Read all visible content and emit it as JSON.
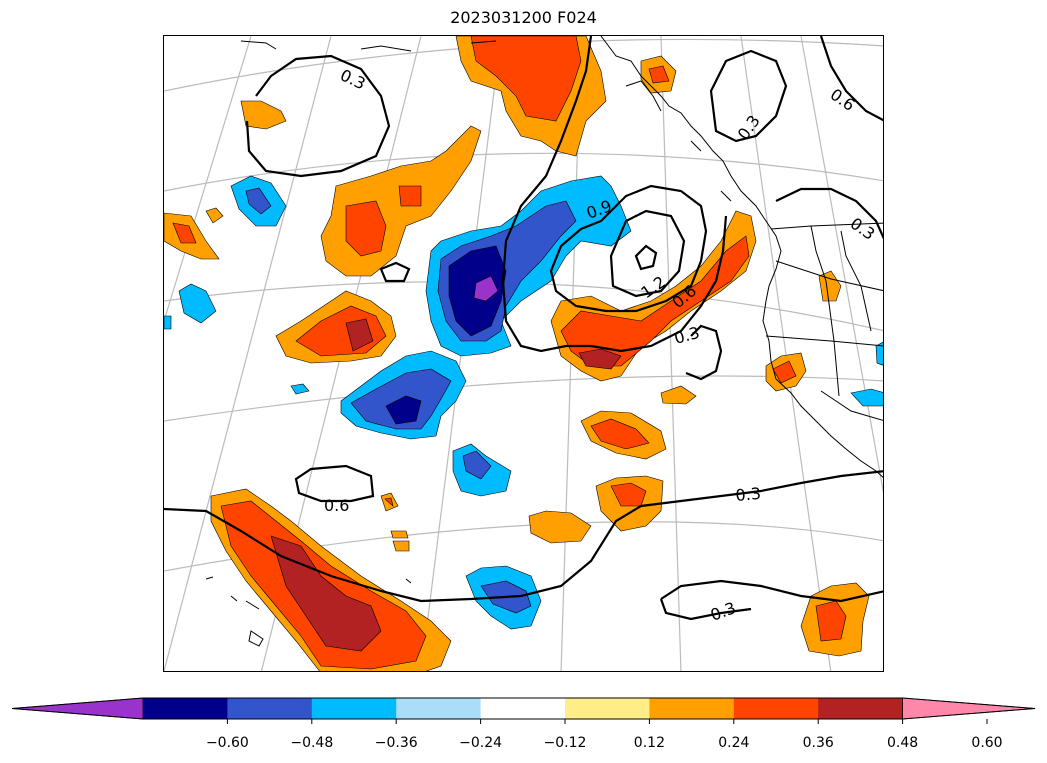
{
  "title": "2023031200 F024",
  "contour_labels": [
    {
      "text": "0.3"
    },
    {
      "text": "0.6"
    },
    {
      "text": "0.3"
    },
    {
      "text": "0.3"
    },
    {
      "text": "0.9"
    },
    {
      "text": "1.2"
    },
    {
      "text": "0.6"
    },
    {
      "text": "0.3"
    },
    {
      "text": "0.6"
    },
    {
      "text": "0.3"
    },
    {
      "text": "0.3"
    }
  ],
  "colorbar": {
    "ticks": [
      "−0.60",
      "−0.48",
      "−0.36",
      "−0.24",
      "−0.12",
      "0.12",
      "0.24",
      "0.36",
      "0.48",
      "0.60"
    ],
    "colors": [
      "#9933cc",
      "#00008b",
      "#3355cc",
      "#00bbff",
      "#aaddf7",
      "#ffffff",
      "#ffee88",
      "#ffa000",
      "#ff4400",
      "#b22222",
      "#ff88aa"
    ]
  },
  "fill_colors": {
    "orange": "#ffa000",
    "red_orange": "#ff4400",
    "dark_red": "#b22222",
    "light_blue": "#00bbff",
    "mid_blue": "#3355cc",
    "dark_blue": "#00008b",
    "purple": "#9933cc"
  }
}
